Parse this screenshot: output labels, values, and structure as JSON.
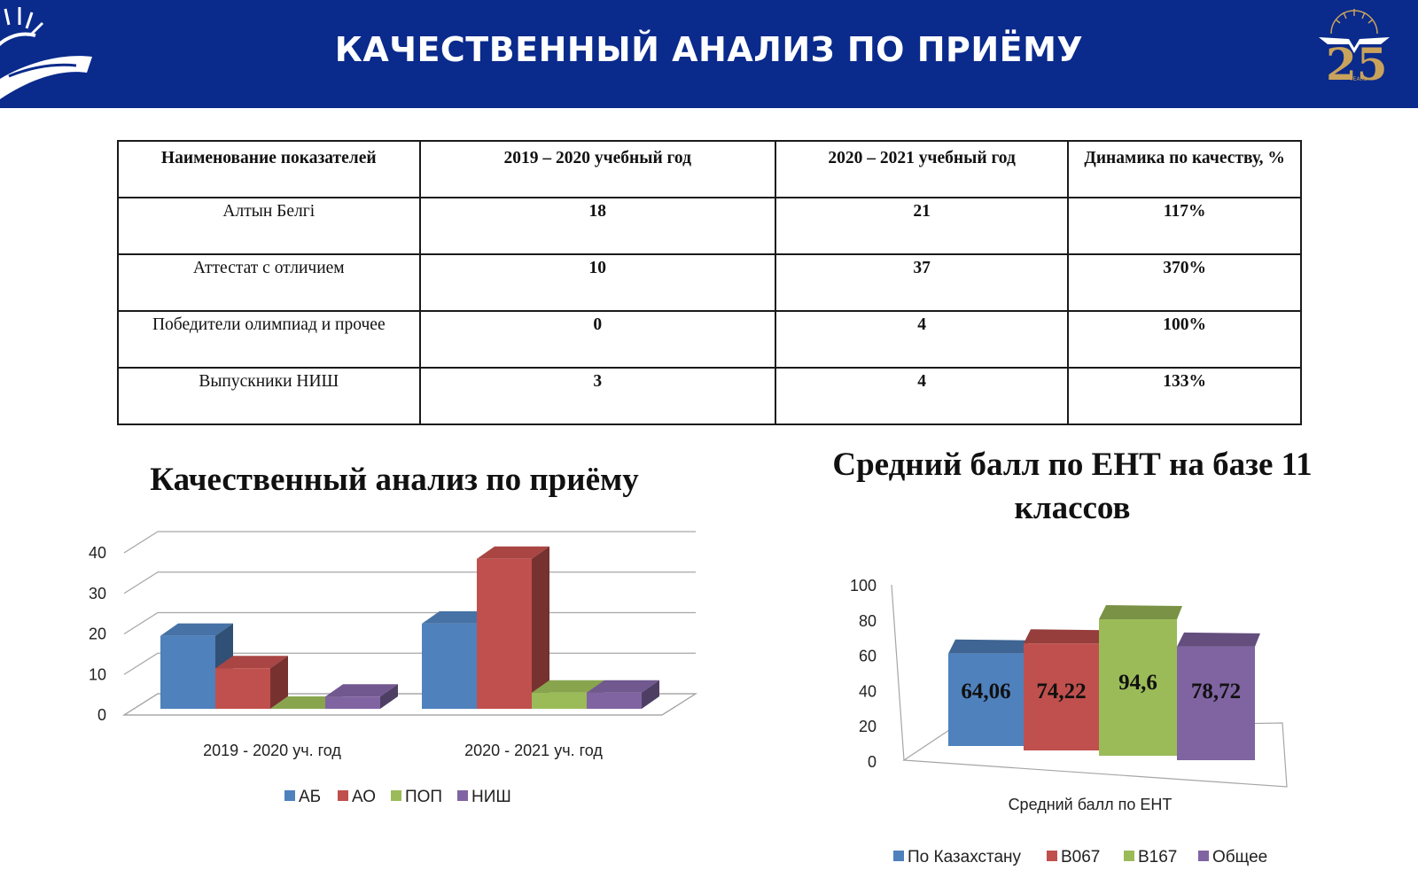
{
  "header": {
    "title": "КАЧЕСТВЕННЫЙ АНАЛИЗ ПО ПРИЁМУ",
    "anniversary_number": "25",
    "anniversary_word": "YEARS"
  },
  "table": {
    "headers": [
      "Наименование показателей",
      "2019 – 2020 учебный год",
      "2020 – 2021 учебный год",
      "Динамика по качеству, %"
    ],
    "rows": [
      {
        "name": "Алтын Белгі",
        "y1": "18",
        "y2": "21",
        "dyn": "117%"
      },
      {
        "name": "Аттестат с отличием",
        "y1": "10",
        "y2": "37",
        "dyn": "370%"
      },
      {
        "name": "Победители олимпиад и прочее",
        "y1": "0",
        "y2": "4",
        "dyn": "100%"
      },
      {
        "name": "Выпускники НИШ",
        "y1": "3",
        "y2": "4",
        "dyn": "133%"
      }
    ]
  },
  "chart_data": [
    {
      "type": "bar",
      "title": "Качественный анализ по приёму",
      "categories": [
        "2019 - 2020 уч. год",
        "2020 - 2021 уч. год"
      ],
      "series": [
        {
          "name": "АБ",
          "values": [
            18,
            21
          ],
          "color": "#4f81bd"
        },
        {
          "name": "АО",
          "values": [
            10,
            37
          ],
          "color": "#c0504d"
        },
        {
          "name": "ПОП",
          "values": [
            0,
            4
          ],
          "color": "#9bbb59"
        },
        {
          "name": "НИШ",
          "values": [
            3,
            4
          ],
          "color": "#8064a2"
        }
      ],
      "yticks": [
        "0",
        "10",
        "20",
        "30",
        "40"
      ],
      "ylim": [
        0,
        40
      ],
      "grid": true,
      "legend": "bottom"
    },
    {
      "type": "bar",
      "title": "Средний балл по ЕНТ на базе 11 классов",
      "categories": [
        "Средний балл по ЕНТ"
      ],
      "series": [
        {
          "name": "По Казахстану",
          "values": [
            64.06
          ],
          "label": "64,06",
          "color": "#4f81bd"
        },
        {
          "name": "В067",
          "values": [
            74.22
          ],
          "label": "74,22",
          "color": "#c0504d"
        },
        {
          "name": "В167",
          "values": [
            94.6
          ],
          "label": "94,6",
          "color": "#9bbb59"
        },
        {
          "name": "Общее",
          "values": [
            78.72
          ],
          "label": "78,72",
          "color": "#8064a2"
        }
      ],
      "yticks": [
        "0",
        "20",
        "40",
        "60",
        "80",
        "100"
      ],
      "ylim": [
        0,
        100
      ],
      "grid": false,
      "legend": "bottom"
    }
  ]
}
